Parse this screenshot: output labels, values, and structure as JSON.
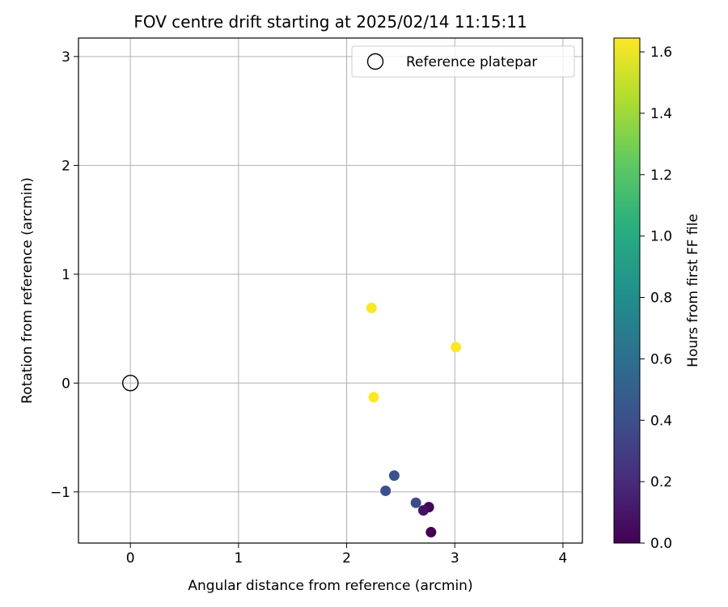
{
  "chart_data": {
    "type": "scatter",
    "title": "FOV centre drift starting at 2025/02/14 11:15:11",
    "xlabel": "Angular distance from reference (arcmin)",
    "ylabel": "Rotation from reference (arcmin)",
    "xlim": [
      -0.48,
      4.18
    ],
    "ylim": [
      -1.47,
      3.17
    ],
    "x_ticks": [
      0,
      1,
      2,
      3,
      4
    ],
    "x_tick_labels": [
      "0",
      "1",
      "2",
      "3",
      "4"
    ],
    "y_ticks": [
      -1,
      0,
      1,
      2,
      3
    ],
    "y_tick_labels": [
      "−1",
      "0",
      "1",
      "2",
      "3"
    ],
    "grid": true,
    "legend": {
      "placement": "upper-right",
      "entries": [
        {
          "label": "Reference platepar",
          "marker": "open-circle"
        }
      ]
    },
    "reference_point": {
      "x": 0,
      "y": 0
    },
    "colorbar": {
      "label": "Hours from first FF file",
      "colormap": "viridis",
      "range": [
        0,
        1.645
      ],
      "ticks": [
        0,
        0.2,
        0.4,
        0.6,
        0.8,
        1.0,
        1.2,
        1.4,
        1.6
      ],
      "tick_labels": [
        "0.0",
        "0.2",
        "0.4",
        "0.6",
        "0.8",
        "1.0",
        "1.2",
        "1.4",
        "1.6"
      ]
    },
    "points": [
      {
        "x": 2.78,
        "y": -1.37,
        "c": 0.0
      },
      {
        "x": 2.76,
        "y": -1.14,
        "c": 0.03
      },
      {
        "x": 2.71,
        "y": -1.17,
        "c": 0.08
      },
      {
        "x": 2.64,
        "y": -1.1,
        "c": 0.38
      },
      {
        "x": 2.36,
        "y": -0.99,
        "c": 0.4
      },
      {
        "x": 2.44,
        "y": -0.85,
        "c": 0.42
      },
      {
        "x": 2.25,
        "y": -0.13,
        "c": 1.64
      },
      {
        "x": 3.01,
        "y": 0.33,
        "c": 1.64
      },
      {
        "x": 2.23,
        "y": 0.69,
        "c": 1.64
      }
    ]
  }
}
